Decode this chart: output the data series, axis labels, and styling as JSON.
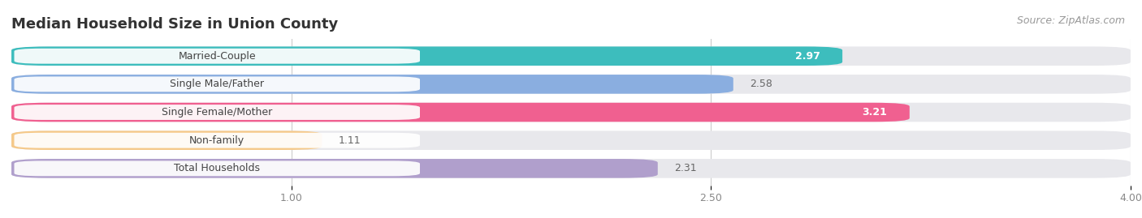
{
  "title": "Median Household Size in Union County",
  "source": "Source: ZipAtlas.com",
  "categories": [
    "Married-Couple",
    "Single Male/Father",
    "Single Female/Mother",
    "Non-family",
    "Total Households"
  ],
  "values": [
    2.97,
    2.58,
    3.21,
    1.11,
    2.31
  ],
  "bar_colors": [
    "#3dbdbd",
    "#8aaee0",
    "#f06090",
    "#f5c98a",
    "#b09fcc"
  ],
  "bar_bg_color": "#e8e8ec",
  "xlim": [
    0,
    4.0
  ],
  "xmin": 0,
  "xmax": 4.0,
  "xticks": [
    1.0,
    2.5,
    4.0
  ],
  "title_fontsize": 13,
  "source_fontsize": 9,
  "label_fontsize": 9,
  "value_fontsize": 9,
  "background_color": "#ffffff",
  "value_inside_color": "#ffffff",
  "value_outside_color": "#666666",
  "inside_threshold": 2.97
}
